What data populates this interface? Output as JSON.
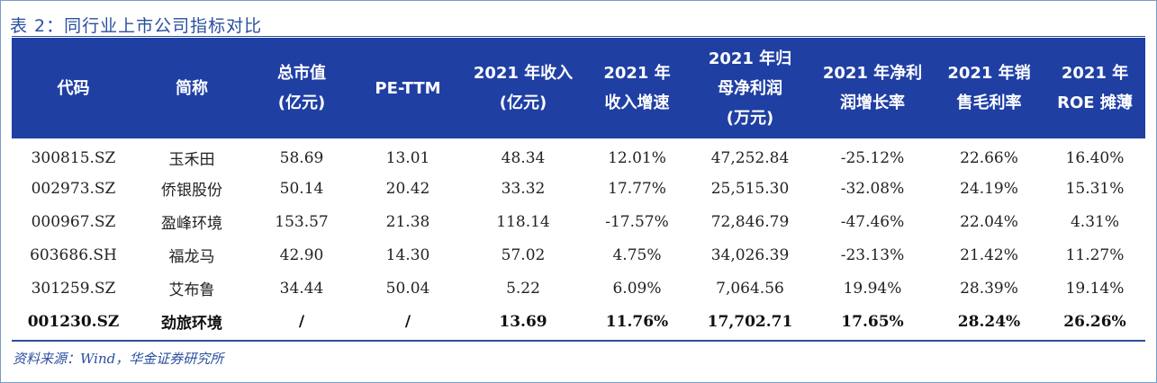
{
  "title": "表 2：同行业上市公司指标对比",
  "table": {
    "headers": [
      "代码",
      "简称",
      "总市值\n(亿元)",
      "PE-TTM",
      "2021 年收入\n(亿元)",
      "2021 年\n收入增速",
      "2021 年归\n母净利润\n(万元)",
      "2021 年净利\n润增长率",
      "2021 年销\n售毛利率",
      "2021 年\nROE 摊薄"
    ],
    "rows": [
      [
        "300815.SZ",
        "玉禾田",
        "58.69",
        "13.01",
        "48.34",
        "12.01%",
        "47,252.84",
        "-25.12%",
        "22.66%",
        "16.40%"
      ],
      [
        "002973.SZ",
        "侨银股份",
        "50.14",
        "20.42",
        "33.32",
        "17.77%",
        "25,515.30",
        "-32.08%",
        "24.19%",
        "15.31%"
      ],
      [
        "000967.SZ",
        "盈峰环境",
        "153.57",
        "21.38",
        "118.14",
        "-17.57%",
        "72,846.79",
        "-47.46%",
        "22.04%",
        "4.31%"
      ],
      [
        "603686.SH",
        "福龙马",
        "42.90",
        "14.30",
        "57.02",
        "4.75%",
        "34,026.39",
        "-23.13%",
        "21.42%",
        "11.27%"
      ],
      [
        "301259.SZ",
        "艾布鲁",
        "34.44",
        "50.04",
        "5.22",
        "6.09%",
        "7,064.56",
        "19.94%",
        "28.39%",
        "19.14%"
      ],
      [
        "001230.SZ",
        "劲旅环境",
        "/",
        "/",
        "13.69",
        "11.76%",
        "17,702.71",
        "17.65%",
        "28.24%",
        "26.26%"
      ]
    ],
    "highlight_row_index": 5
  },
  "source": "资料来源：Wind，华金证券研究所",
  "colors": {
    "header_bg": "#1f3fa3",
    "accent": "#2b4f9e"
  }
}
